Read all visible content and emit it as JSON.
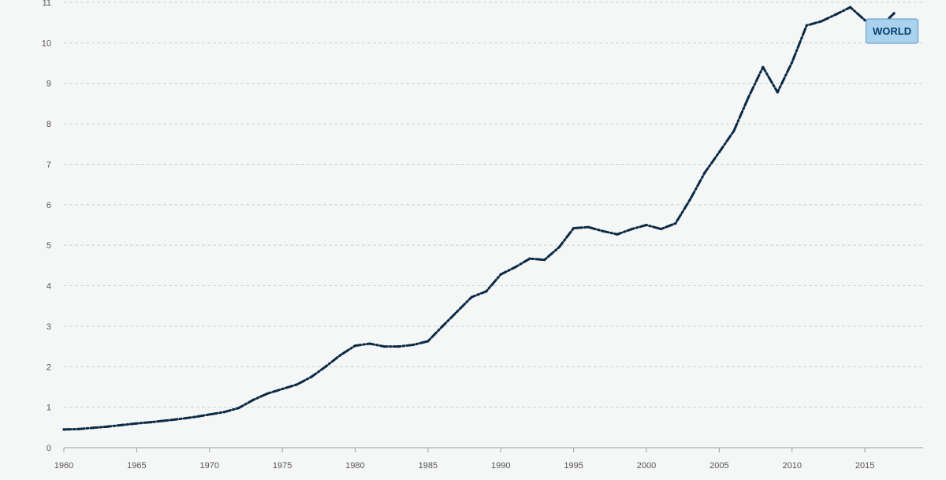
{
  "chart_data": {
    "type": "line",
    "x": [
      1960,
      1961,
      1962,
      1963,
      1964,
      1965,
      1966,
      1967,
      1968,
      1969,
      1970,
      1971,
      1972,
      1973,
      1974,
      1975,
      1976,
      1977,
      1978,
      1979,
      1980,
      1981,
      1982,
      1983,
      1984,
      1985,
      1986,
      1987,
      1988,
      1989,
      1990,
      1991,
      1992,
      1993,
      1994,
      1995,
      1996,
      1997,
      1998,
      1999,
      2000,
      2001,
      2002,
      2003,
      2004,
      2005,
      2006,
      2007,
      2008,
      2009,
      2010,
      2011,
      2012,
      2013,
      2014,
      2015,
      2016,
      2017
    ],
    "series": [
      {
        "name": "WORLD",
        "values": [
          0.45,
          0.46,
          0.49,
          0.52,
          0.56,
          0.6,
          0.63,
          0.67,
          0.71,
          0.76,
          0.82,
          0.88,
          0.98,
          1.18,
          1.34,
          1.45,
          1.56,
          1.75,
          2.01,
          2.29,
          2.52,
          2.57,
          2.5,
          2.5,
          2.54,
          2.63,
          3.0,
          3.36,
          3.72,
          3.86,
          4.28,
          4.46,
          4.67,
          4.64,
          4.95,
          5.42,
          5.45,
          5.35,
          5.27,
          5.4,
          5.5,
          5.4,
          5.54,
          6.13,
          6.79,
          7.3,
          7.82,
          8.65,
          9.4,
          8.78,
          9.52,
          10.43,
          10.53,
          10.7,
          10.88,
          10.56,
          10.38,
          10.73
        ]
      }
    ],
    "xlim": [
      1960,
      2019
    ],
    "ylim": [
      0,
      11
    ],
    "xticks": [
      1960,
      1965,
      1970,
      1975,
      1980,
      1985,
      1990,
      1995,
      2000,
      2005,
      2010,
      2015
    ],
    "yticks": [
      0,
      1,
      2,
      3,
      4,
      5,
      6,
      7,
      8,
      9,
      10,
      11
    ],
    "grid": true,
    "title": "",
    "xlabel": "",
    "ylabel": "",
    "colors": {
      "line": "#0b2a46",
      "grid": "#cfd3d6",
      "badge_fill": "#a9d2ee",
      "badge_border": "#5d95c2",
      "badge_text": "#0b3d6e"
    }
  }
}
